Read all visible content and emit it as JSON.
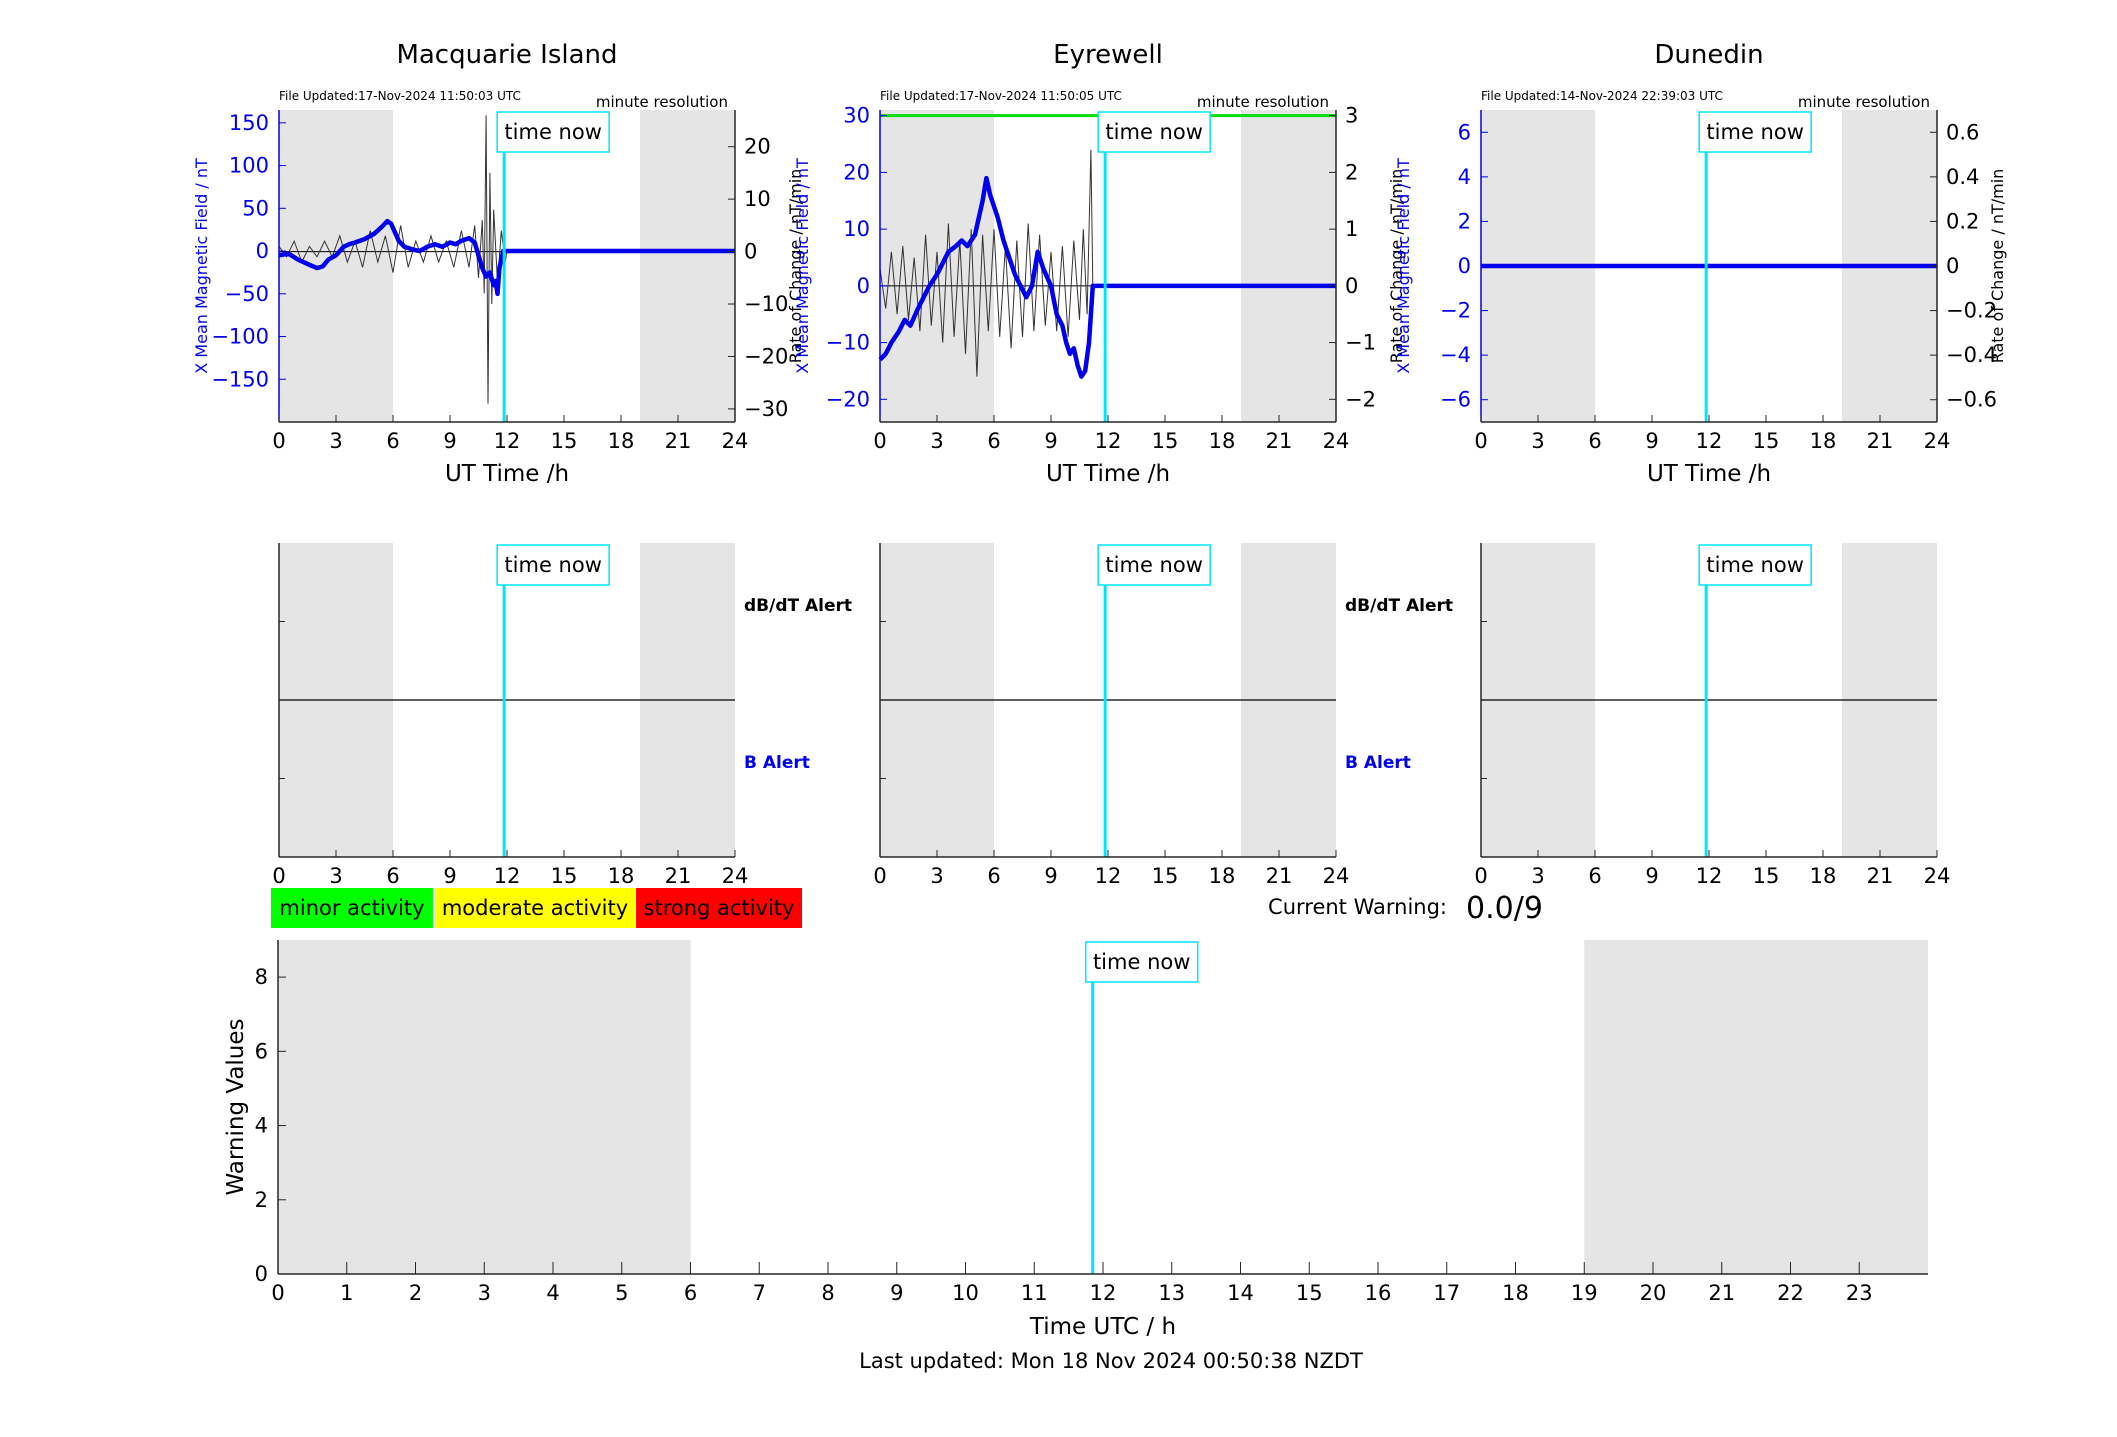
{
  "footer": {
    "last_updated": "Last updated: Mon 18 Nov 2024 00:50:38 NZDT"
  },
  "legend": [
    {
      "label": "minor activity",
      "color": "#00ff00"
    },
    {
      "label": "moderate activity",
      "color": "#ffff00"
    },
    {
      "label": "strong activity",
      "color": "#ff0000"
    }
  ],
  "current_warning": {
    "label": "Current Warning:",
    "value": "0.0/9"
  },
  "colors": {
    "night_shade": "#e5e5e5",
    "field_line": "#0000ee",
    "rate_line": "#333333",
    "time_now_line": "#00e5ff",
    "threshold_line": "#00dd00",
    "left_axis": "#0000ee",
    "b_alert": "#0000ee"
  },
  "chart_data": [
    {
      "type": "line",
      "title": "Macquarie Island",
      "file_updated": "File Updated:17-Nov-2024 11:50:03 UTC",
      "resolution": "minute resolution",
      "xlabel": "UT Time /h",
      "ylabel_left": "X Mean Magnetic Field / nT",
      "ylabel_right": "Rate of Change / nT/min",
      "xlim": [
        0,
        24
      ],
      "xticks": [
        0,
        3,
        6,
        9,
        12,
        15,
        18,
        21,
        24
      ],
      "ylim_left": [
        -200,
        165
      ],
      "yticks_left": [
        -150,
        -100,
        -50,
        0,
        50,
        100,
        150
      ],
      "ylim_right": [
        -32.5,
        27
      ],
      "yticks_right": [
        -30,
        -20,
        -10,
        0,
        10,
        20
      ],
      "night": [
        [
          0,
          6
        ],
        [
          19,
          24
        ]
      ],
      "time_now": 11.85,
      "time_now_label": "time now",
      "field_series": {
        "x": [
          0,
          0.5,
          1,
          1.5,
          2,
          2.3,
          2.6,
          3,
          3.4,
          3.7,
          4,
          4.5,
          5,
          5.4,
          5.7,
          5.9,
          6.1,
          6.3,
          6.6,
          7,
          7.4,
          7.8,
          8.2,
          8.6,
          9,
          9.3,
          9.6,
          10,
          10.3,
          10.5,
          10.7,
          10.9,
          11.1,
          11.3,
          11.4,
          11.5,
          11.6,
          11.8,
          11.9,
          12,
          14,
          16,
          18,
          20,
          22,
          24
        ],
        "y": [
          -5,
          -3,
          -10,
          -15,
          -20,
          -18,
          -10,
          -5,
          5,
          8,
          10,
          14,
          20,
          28,
          35,
          32,
          22,
          12,
          5,
          2,
          0,
          5,
          8,
          5,
          10,
          8,
          12,
          15,
          10,
          -5,
          -20,
          -30,
          -25,
          -40,
          -35,
          -50,
          -20,
          0,
          0,
          0,
          0,
          0,
          0,
          0,
          0,
          0
        ]
      },
      "rate_series": {
        "x": [
          0,
          0.4,
          0.8,
          1.2,
          1.6,
          2,
          2.4,
          2.8,
          3.2,
          3.6,
          4,
          4.4,
          4.8,
          5.2,
          5.6,
          6,
          6.4,
          6.8,
          7.2,
          7.6,
          8,
          8.4,
          8.8,
          9.2,
          9.6,
          10,
          10.3,
          10.5,
          10.7,
          10.8,
          10.9,
          11,
          11.1,
          11.2,
          11.3,
          11.5,
          11.7,
          11.9,
          12,
          24
        ],
        "y": [
          1,
          -1,
          2,
          -2,
          1,
          -1,
          2,
          -1,
          3,
          -2,
          2,
          -3,
          4,
          -2,
          3,
          -4,
          5,
          -3,
          2,
          -2,
          3,
          -2,
          2,
          -3,
          4,
          -3,
          5,
          -5,
          6,
          -8,
          26,
          -29,
          15,
          -10,
          8,
          -6,
          4,
          -2,
          0,
          0
        ]
      }
    },
    {
      "type": "line",
      "title": "Eyrewell",
      "file_updated": "File Updated:17-Nov-2024 11:50:05 UTC",
      "resolution": "minute resolution",
      "xlabel": "UT Time /h",
      "ylabel_left": "X Mean Magnetic Field / nT",
      "ylabel_right": "Rate of Change / nT/min",
      "xlim": [
        0,
        24
      ],
      "xticks": [
        0,
        3,
        6,
        9,
        12,
        15,
        18,
        21,
        24
      ],
      "ylim_left": [
        -24,
        31
      ],
      "yticks_left": [
        -20,
        -10,
        0,
        10,
        20,
        30
      ],
      "ylim_right": [
        -2.4,
        3.1
      ],
      "yticks_right": [
        -2,
        -1,
        0,
        1,
        2,
        3
      ],
      "night": [
        [
          0,
          6
        ],
        [
          19,
          24
        ]
      ],
      "time_now": 11.85,
      "time_now_label": "time now",
      "threshold": 30,
      "field_series": {
        "x": [
          0,
          0.3,
          0.6,
          1,
          1.3,
          1.6,
          2,
          2.3,
          2.6,
          3,
          3.3,
          3.6,
          4,
          4.3,
          4.6,
          5,
          5.2,
          5.4,
          5.6,
          5.8,
          6,
          6.2,
          6.5,
          6.8,
          7.1,
          7.4,
          7.7,
          8,
          8.3,
          8.6,
          9,
          9.3,
          9.6,
          9.8,
          10,
          10.2,
          10.4,
          10.6,
          10.8,
          11,
          11.2,
          14,
          17,
          20,
          24
        ],
        "y": [
          -13,
          -12,
          -10,
          -8,
          -6,
          -7,
          -4,
          -2,
          0,
          2,
          4,
          6,
          7,
          8,
          7,
          9,
          12,
          15,
          19,
          16,
          14,
          12,
          8,
          5,
          2,
          0,
          -2,
          0,
          6,
          3,
          0,
          -5,
          -7,
          -10,
          -12,
          -11,
          -14,
          -16,
          -15,
          -10,
          0,
          0,
          0,
          0,
          0
        ]
      },
      "rate_series": {
        "x": [
          0,
          0.3,
          0.6,
          0.9,
          1.2,
          1.5,
          1.8,
          2.1,
          2.4,
          2.7,
          3,
          3.3,
          3.6,
          3.9,
          4.2,
          4.5,
          4.8,
          5.1,
          5.4,
          5.7,
          6,
          6.3,
          6.6,
          6.9,
          7.2,
          7.5,
          7.8,
          8.1,
          8.4,
          8.7,
          9,
          9.3,
          9.6,
          9.9,
          10.2,
          10.5,
          10.7,
          10.9,
          11.1,
          11.2,
          24
        ],
        "y": [
          0.3,
          -0.4,
          0.6,
          -0.5,
          0.7,
          -0.6,
          0.5,
          -0.8,
          0.9,
          -0.7,
          0.6,
          -1.0,
          1.1,
          -0.9,
          0.8,
          -1.2,
          1.0,
          -1.6,
          0.9,
          -0.8,
          1.0,
          -0.9,
          0.7,
          -1.1,
          0.8,
          -0.9,
          1.1,
          -0.8,
          0.9,
          -0.7,
          0.6,
          -0.8,
          0.7,
          -0.9,
          0.8,
          -0.6,
          1.0,
          -0.5,
          2.4,
          0,
          0
        ]
      }
    },
    {
      "type": "line",
      "title": "Dunedin",
      "file_updated": "File Updated:14-Nov-2024 22:39:03 UTC",
      "resolution": "minute resolution",
      "xlabel": "UT Time /h",
      "ylabel_left": "X Mean Magnetic Field / nT",
      "ylabel_right": "Rate of Change / nT/min",
      "xlim": [
        0,
        24
      ],
      "xticks": [
        0,
        3,
        6,
        9,
        12,
        15,
        18,
        21,
        24
      ],
      "ylim_left": [
        -7,
        7
      ],
      "yticks_left": [
        -6,
        -4,
        -2,
        0,
        2,
        4,
        6
      ],
      "ylim_right": [
        -0.7,
        0.7
      ],
      "yticks_right": [
        -0.6,
        -0.4,
        -0.2,
        0,
        0.2,
        0.4,
        0.6
      ],
      "night": [
        [
          0,
          6
        ],
        [
          19,
          24
        ]
      ],
      "time_now": 11.85,
      "time_now_label": "time now",
      "field_series": {
        "x": [
          0,
          24
        ],
        "y": [
          0,
          0
        ]
      },
      "rate_series": {
        "x": [
          0,
          24
        ],
        "y": [
          0,
          0
        ]
      }
    },
    {
      "type": "line",
      "title": "",
      "xlim": [
        0,
        24
      ],
      "xticks": [
        0,
        3,
        6,
        9,
        12,
        15,
        18,
        21,
        24
      ],
      "night": [
        [
          0,
          6
        ],
        [
          19,
          24
        ]
      ],
      "time_now": 11.85,
      "time_now_label": "time now",
      "labels": [
        "dB/dT Alert",
        "B Alert"
      ]
    },
    {
      "type": "line",
      "title": "",
      "xlim": [
        0,
        24
      ],
      "xticks": [
        0,
        3,
        6,
        9,
        12,
        15,
        18,
        21,
        24
      ],
      "night": [
        [
          0,
          6
        ],
        [
          19,
          24
        ]
      ],
      "time_now": 11.85,
      "time_now_label": "time now",
      "labels": [
        "dB/dT Alert",
        "B Alert"
      ]
    },
    {
      "type": "line",
      "title": "",
      "xlim": [
        0,
        24
      ],
      "xticks": [
        0,
        3,
        6,
        9,
        12,
        15,
        18,
        21,
        24
      ],
      "night": [
        [
          0,
          6
        ],
        [
          19,
          24
        ]
      ],
      "time_now": 11.85,
      "time_now_label": "time now",
      "labels": []
    },
    {
      "type": "line",
      "title": "",
      "xlabel": "Time UTC / h",
      "ylabel": "Warning Values",
      "xlim": [
        0,
        24
      ],
      "xticks": [
        0,
        1,
        2,
        3,
        4,
        5,
        6,
        7,
        8,
        9,
        10,
        11,
        12,
        13,
        14,
        15,
        16,
        17,
        18,
        19,
        20,
        21,
        22,
        23
      ],
      "ylim": [
        0,
        9
      ],
      "yticks": [
        0,
        2,
        4,
        6,
        8
      ],
      "night": [
        [
          0,
          6
        ],
        [
          19,
          24
        ]
      ],
      "time_now": 11.85,
      "time_now_label": "time now",
      "series": []
    }
  ]
}
